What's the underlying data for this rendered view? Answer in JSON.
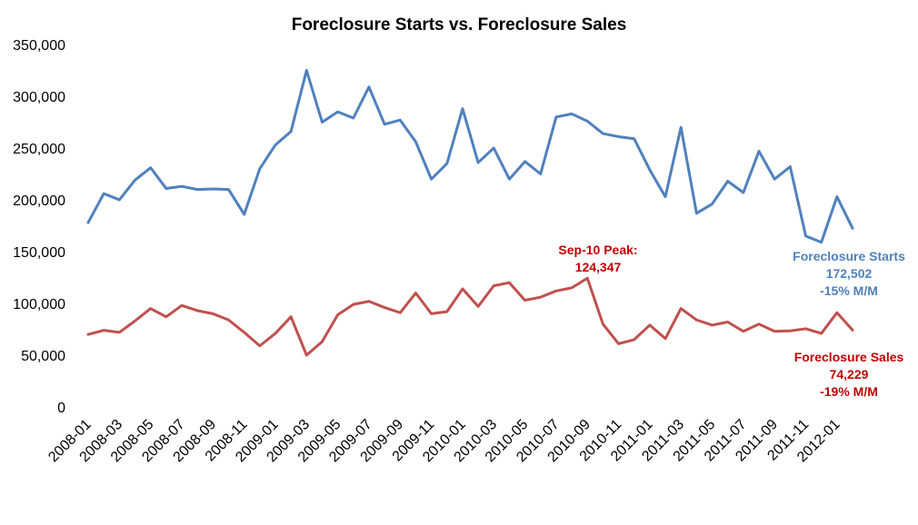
{
  "chart_data": {
    "type": "line",
    "title": "Foreclosure Starts vs. Foreclosure Sales",
    "xlabel": "",
    "ylabel": "",
    "ylim": [
      0,
      350000
    ],
    "yticks": [
      "0",
      "50,000",
      "100,000",
      "150,000",
      "200,000",
      "250,000",
      "300,000",
      "350,000"
    ],
    "ytick_values": [
      0,
      50000,
      100000,
      150000,
      200000,
      250000,
      300000,
      350000
    ],
    "grid": false,
    "legend": "none",
    "x": [
      "2008-01",
      "2008-02",
      "2008-03",
      "2008-04",
      "2008-05",
      "2008-06",
      "2008-07",
      "2008-08",
      "2008-09",
      "2008-10",
      "2008-11",
      "2008-12",
      "2009-01",
      "2009-02",
      "2009-03",
      "2009-04",
      "2009-05",
      "2009-06",
      "2009-07",
      "2009-08",
      "2009-09",
      "2009-10",
      "2009-11",
      "2009-12",
      "2010-01",
      "2010-02",
      "2010-03",
      "2010-04",
      "2010-05",
      "2010-06",
      "2010-07",
      "2010-08",
      "2010-09",
      "2010-10",
      "2010-11",
      "2010-12",
      "2011-01",
      "2011-02",
      "2011-03",
      "2011-04",
      "2011-05",
      "2011-06",
      "2011-07",
      "2011-08",
      "2011-09",
      "2011-10",
      "2011-11",
      "2011-12",
      "2012-01",
      "2012-02"
    ],
    "xtick_labels": [
      "2008-01",
      "2008-03",
      "2008-05",
      "2008-07",
      "2008-09",
      "2008-11",
      "2009-01",
      "2009-03",
      "2009-05",
      "2009-07",
      "2009-09",
      "2009-11",
      "2010-01",
      "2010-03",
      "2010-05",
      "2010-07",
      "2010-09",
      "2010-11",
      "2011-01",
      "2011-03",
      "2011-05",
      "2011-07",
      "2011-09",
      "2011-11",
      "2012-01"
    ],
    "series": [
      {
        "name": "Foreclosure Starts",
        "color": "#4f81bd",
        "values": [
          178000,
          206000,
          200000,
          219000,
          231000,
          211000,
          213000,
          210000,
          210500,
          210000,
          186000,
          230000,
          253000,
          266000,
          325000,
          275000,
          285000,
          279000,
          309000,
          273000,
          277000,
          256000,
          220000,
          235000,
          288000,
          236000,
          250000,
          220000,
          237000,
          225000,
          280000,
          283000,
          276000,
          264000,
          261000,
          259000,
          229000,
          203000,
          270000,
          187000,
          196000,
          218000,
          207000,
          247000,
          220000,
          232000,
          165000,
          159000,
          203000,
          172502
        ]
      },
      {
        "name": "Foreclosure Sales",
        "color": "#c0504d",
        "values": [
          70000,
          74000,
          72000,
          83000,
          95000,
          87000,
          98000,
          93000,
          90000,
          84000,
          72000,
          59000,
          71000,
          87000,
          50000,
          63000,
          89000,
          99000,
          102000,
          96000,
          91000,
          110000,
          90000,
          92000,
          114000,
          97000,
          117000,
          120000,
          103000,
          106000,
          112000,
          115000,
          124347,
          80000,
          61000,
          65000,
          79000,
          66000,
          95000,
          84000,
          79000,
          82000,
          73000,
          80000,
          73000,
          73500,
          75500,
          71000,
          91000,
          74229
        ]
      }
    ],
    "annotations": {
      "peak": {
        "line1": "Sep-10 Peak:",
        "line2": "124,347",
        "color": "#c00000"
      },
      "starts": {
        "line1": "Foreclosure Starts",
        "line2": "172,502",
        "line3": "-15% M/M",
        "color": "#4f81bd"
      },
      "sales": {
        "line1": "Foreclosure Sales",
        "line2": "74,229",
        "line3": "-19% M/M",
        "color": "#c00000"
      }
    }
  }
}
